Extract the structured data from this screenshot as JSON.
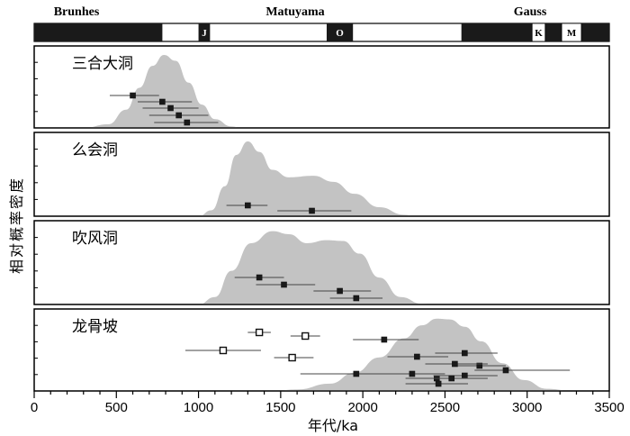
{
  "chart_data": {
    "type": "area",
    "xlabel": "年代/ka",
    "ylabel": "相对概率密度",
    "xlim": [
      0,
      3500
    ],
    "xticks": [
      "0",
      "500",
      "1000",
      "1500",
      "2000",
      "2500",
      "3000",
      "3500"
    ],
    "polarity_chrons": [
      {
        "label": "Brunhes",
        "start": 0,
        "end": 780,
        "polarity": "normal"
      },
      {
        "label": "Matuyama",
        "start": 780,
        "end": 2600,
        "polarity": "reversed"
      },
      {
        "label": "Gauss",
        "start": 2600,
        "end": 3500,
        "polarity": "normal"
      }
    ],
    "subchrons": [
      {
        "label": "J",
        "start": 1000,
        "end": 1070
      },
      {
        "label": "O",
        "start": 1780,
        "end": 1940
      },
      {
        "label": "K",
        "start": 3030,
        "end": 3110
      },
      {
        "label": "M",
        "start": 3210,
        "end": 3330
      }
    ],
    "panels": [
      {
        "name": "三合大洞",
        "density": [
          [
            300,
            0
          ],
          [
            450,
            0.05
          ],
          [
            560,
            0.25
          ],
          [
            640,
            0.55
          ],
          [
            720,
            0.85
          ],
          [
            790,
            1.0
          ],
          [
            860,
            0.92
          ],
          [
            940,
            0.62
          ],
          [
            1020,
            0.32
          ],
          [
            1100,
            0.12
          ],
          [
            1200,
            0.02
          ],
          [
            1260,
            0
          ]
        ],
        "points": [
          {
            "age": 600,
            "err_lo": 460,
            "err_hi": 760,
            "filled": true
          },
          {
            "age": 780,
            "err_lo": 630,
            "err_hi": 960,
            "filled": true
          },
          {
            "age": 830,
            "err_lo": 660,
            "err_hi": 1000,
            "filled": true
          },
          {
            "age": 880,
            "err_lo": 700,
            "err_hi": 1060,
            "filled": true
          },
          {
            "age": 930,
            "err_lo": 730,
            "err_hi": 1120,
            "filled": true
          }
        ]
      },
      {
        "name": "么会洞",
        "density": [
          [
            1000,
            0
          ],
          [
            1080,
            0.08
          ],
          [
            1160,
            0.4
          ],
          [
            1230,
            0.82
          ],
          [
            1300,
            1.0
          ],
          [
            1370,
            0.86
          ],
          [
            1450,
            0.62
          ],
          [
            1550,
            0.52
          ],
          [
            1700,
            0.54
          ],
          [
            1820,
            0.46
          ],
          [
            1950,
            0.3
          ],
          [
            2100,
            0.12
          ],
          [
            2250,
            0.02
          ],
          [
            2320,
            0
          ]
        ],
        "points": [
          {
            "age": 1300,
            "err_lo": 1170,
            "err_hi": 1420,
            "filled": true
          },
          {
            "age": 1690,
            "err_lo": 1480,
            "err_hi": 1930,
            "filled": true
          }
        ]
      },
      {
        "name": "吹风洞",
        "density": [
          [
            1000,
            0
          ],
          [
            1100,
            0.1
          ],
          [
            1200,
            0.45
          ],
          [
            1320,
            0.82
          ],
          [
            1450,
            0.98
          ],
          [
            1550,
            0.94
          ],
          [
            1660,
            0.82
          ],
          [
            1780,
            0.86
          ],
          [
            1880,
            0.85
          ],
          [
            1980,
            0.68
          ],
          [
            2100,
            0.36
          ],
          [
            2230,
            0.1
          ],
          [
            2360,
            0.01
          ],
          [
            2420,
            0
          ]
        ],
        "points": [
          {
            "age": 1370,
            "err_lo": 1220,
            "err_hi": 1520,
            "filled": true
          },
          {
            "age": 1520,
            "err_lo": 1350,
            "err_hi": 1710,
            "filled": true
          },
          {
            "age": 1860,
            "err_lo": 1700,
            "err_hi": 2050,
            "filled": true
          },
          {
            "age": 1960,
            "err_lo": 1800,
            "err_hi": 2120,
            "filled": true
          }
        ]
      },
      {
        "name": "龙骨坡",
        "density": [
          [
            1450,
            0
          ],
          [
            1600,
            0.02
          ],
          [
            1800,
            0.1
          ],
          [
            1950,
            0.25
          ],
          [
            2100,
            0.46
          ],
          [
            2250,
            0.72
          ],
          [
            2360,
            0.9
          ],
          [
            2450,
            0.99
          ],
          [
            2530,
            0.98
          ],
          [
            2620,
            0.88
          ],
          [
            2720,
            0.68
          ],
          [
            2850,
            0.38
          ],
          [
            2980,
            0.15
          ],
          [
            3120,
            0.03
          ],
          [
            3280,
            0
          ]
        ],
        "points": [
          {
            "age": 1370,
            "err_lo": 1300,
            "err_hi": 1440,
            "filled": false
          },
          {
            "age": 1150,
            "err_lo": 920,
            "err_hi": 1380,
            "filled": false
          },
          {
            "age": 1570,
            "err_lo": 1460,
            "err_hi": 1700,
            "filled": false
          },
          {
            "age": 1650,
            "err_lo": 1560,
            "err_hi": 1740,
            "filled": false
          },
          {
            "age": 2710,
            "err_lo": 2560,
            "err_hi": 2870,
            "filled": true
          },
          {
            "age": 1960,
            "err_lo": 1620,
            "err_hi": 2360,
            "filled": true
          },
          {
            "age": 2450,
            "err_lo": 2260,
            "err_hi": 2640,
            "filled": true
          },
          {
            "age": 2130,
            "err_lo": 1940,
            "err_hi": 2340,
            "filled": true
          },
          {
            "age": 2620,
            "err_lo": 2440,
            "err_hi": 2820,
            "filled": true
          },
          {
            "age": 2330,
            "err_lo": 2150,
            "err_hi": 2520,
            "filled": true
          },
          {
            "age": 2560,
            "err_lo": 2380,
            "err_hi": 2760,
            "filled": true
          },
          {
            "age": 2870,
            "err_lo": 2680,
            "err_hi": 3260,
            "filled": true
          },
          {
            "age": 2300,
            "err_lo": 2100,
            "err_hi": 2500,
            "filled": true
          },
          {
            "age": 2620,
            "err_lo": 2430,
            "err_hi": 2820,
            "filled": true
          },
          {
            "age": 2540,
            "err_lo": 2320,
            "err_hi": 2760,
            "filled": true
          },
          {
            "age": 2460,
            "err_lo": 2260,
            "err_hi": 2640,
            "filled": true
          }
        ]
      }
    ],
    "colors": {
      "density_fill": "#c3c3c3",
      "axis": "#000000",
      "point": "#1a1a1a"
    }
  }
}
